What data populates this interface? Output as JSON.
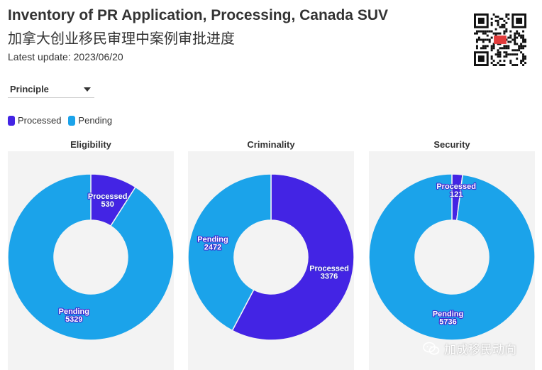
{
  "header": {
    "title": "Inventory of PR Application, Processing, Canada SUV",
    "subtitle_cn": "加拿大创业移民审理中案例审批进度",
    "update": "Latest update: 2023/06/20"
  },
  "filter": {
    "selected": "Principle"
  },
  "colors": {
    "processed": "#4324e4",
    "pending": "#1ba3ea",
    "panel_bg": "#f3f3f3"
  },
  "watermark": {
    "text": "加成移民动向",
    "icon": "wechat-icon"
  },
  "qr": {
    "icon": "qr-code-icon"
  },
  "chart_data": [
    {
      "type": "pie",
      "title": "Eligibility",
      "legend": [
        "Processed",
        "Pending"
      ],
      "slices": [
        {
          "label": "Processed",
          "value": 530
        },
        {
          "label": "Pending",
          "value": 5329
        }
      ]
    },
    {
      "type": "pie",
      "title": "Criminality",
      "legend": [
        "Processed",
        "Pending"
      ],
      "slices": [
        {
          "label": "Processed",
          "value": 3376
        },
        {
          "label": "Pending",
          "value": 2472
        }
      ]
    },
    {
      "type": "pie",
      "title": "Security",
      "legend": [
        "Processed",
        "Pending"
      ],
      "slices": [
        {
          "label": "Processed",
          "value": 121
        },
        {
          "label": "Pending",
          "value": 5736
        }
      ]
    }
  ]
}
